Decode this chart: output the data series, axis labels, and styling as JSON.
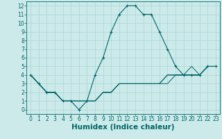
{
  "title": "",
  "xlabel": "Humidex (Indice chaleur)",
  "bg_color": "#cceaea",
  "grid_color": "#b0d8d8",
  "line_color": "#006666",
  "xlim": [
    -0.5,
    23.5
  ],
  "ylim": [
    -0.5,
    12.5
  ],
  "xticks": [
    0,
    1,
    2,
    3,
    4,
    5,
    6,
    7,
    8,
    9,
    10,
    11,
    12,
    13,
    14,
    15,
    16,
    17,
    18,
    19,
    20,
    21,
    22,
    23
  ],
  "yticks": [
    0,
    1,
    2,
    3,
    4,
    5,
    6,
    7,
    8,
    9,
    10,
    11,
    12
  ],
  "lines": [
    {
      "x": [
        0,
        1,
        2,
        3,
        4,
        5,
        6,
        7,
        8,
        9,
        10,
        11,
        12,
        13,
        14,
        15,
        16,
        17,
        18,
        19,
        20,
        21,
        22,
        23
      ],
      "y": [
        4,
        3,
        2,
        2,
        1,
        1,
        0,
        1,
        4,
        6,
        9,
        11,
        12,
        12,
        11,
        11,
        9,
        7,
        5,
        4,
        4,
        4,
        5,
        5
      ],
      "marker": true
    },
    {
      "x": [
        0,
        1,
        2,
        3,
        4,
        5,
        6,
        7,
        8,
        9,
        10,
        11,
        12,
        13,
        14,
        15,
        16,
        17,
        18,
        19,
        20,
        21,
        22,
        23
      ],
      "y": [
        4,
        3,
        2,
        2,
        1,
        1,
        1,
        1,
        1,
        2,
        2,
        3,
        3,
        3,
        3,
        3,
        3,
        4,
        4,
        4,
        4,
        4,
        5,
        5
      ],
      "marker": false
    },
    {
      "x": [
        0,
        1,
        2,
        3,
        4,
        5,
        6,
        7,
        8,
        9,
        10,
        11,
        12,
        13,
        14,
        15,
        16,
        17,
        18,
        19,
        20,
        21,
        22,
        23
      ],
      "y": [
        4,
        3,
        2,
        2,
        1,
        1,
        1,
        1,
        1,
        2,
        2,
        3,
        3,
        3,
        3,
        3,
        3,
        4,
        4,
        4,
        4,
        4,
        5,
        5
      ],
      "marker": false
    },
    {
      "x": [
        0,
        1,
        2,
        3,
        4,
        5,
        6,
        7,
        8,
        9,
        10,
        11,
        12,
        13,
        14,
        15,
        16,
        17,
        18,
        19,
        20,
        21,
        22,
        23
      ],
      "y": [
        4,
        3,
        2,
        2,
        1,
        1,
        1,
        1,
        1,
        2,
        2,
        3,
        3,
        3,
        3,
        3,
        3,
        3,
        4,
        4,
        5,
        4,
        5,
        5
      ],
      "marker": false
    }
  ],
  "font_color": "#006666",
  "tick_fontsize": 5.5,
  "xlabel_fontsize": 7.5
}
